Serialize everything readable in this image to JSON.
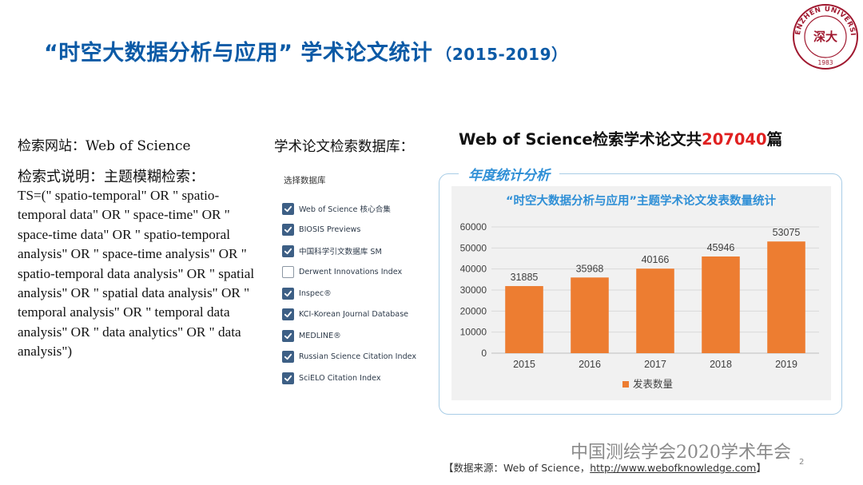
{
  "slide": {
    "title": "“时空大数据分析与应用” 学术论文统计",
    "title_range": "（2015-2019）",
    "page_number": "2"
  },
  "logo": {
    "text_top": "SHENZHEN UNIVERSITY",
    "year": "1983",
    "seal_chars": "深大",
    "color": "#a0182f"
  },
  "left": {
    "site_line": "检索网站：Web of Science",
    "query_label": "检索式说明：主题模糊检索：",
    "query_text": "TS=(\" spatio-temporal\"  OR \" spatio-temporal data\"  OR \" space-time\" OR \" space-time data\"  OR \" spatio-temporal analysis\" OR \" space-time analysis\"   OR \" spatio-temporal data analysis\"  OR \" spatial analysis\"  OR \" spatial data analysis\"  OR \" temporal analysis\"  OR \" temporal data analysis\"  OR \" data analytics\"  OR \" data analysis\")"
  },
  "databases": {
    "heading": "学术论文检索数据库：",
    "box_title": "选择数据库",
    "items": [
      {
        "label": "Web of Science 核心合集",
        "checked": true
      },
      {
        "label": "BIOSIS Previews",
        "checked": true
      },
      {
        "label": "中国科学引文数据库 SM",
        "checked": true
      },
      {
        "label": "Derwent Innovations Index",
        "checked": false
      },
      {
        "label": "Inspec®",
        "checked": true
      },
      {
        "label": "KCI-Korean Journal Database",
        "checked": true
      },
      {
        "label": "MEDLINE®",
        "checked": true
      },
      {
        "label": "Russian Science Citation Index",
        "checked": true
      },
      {
        "label": "SciELO Citation Index",
        "checked": true
      }
    ]
  },
  "summary": {
    "prefix": "Web of Science检索学术论文共",
    "total": "207040",
    "suffix": "篇"
  },
  "chart_tag": "年度统计分析",
  "chart_data": {
    "type": "bar",
    "title": "“时空大数据分析与应用”主题学术论文发表数量统计",
    "categories": [
      "2015",
      "2016",
      "2017",
      "2018",
      "2019"
    ],
    "series": [
      {
        "name": "发表数量",
        "values": [
          31885,
          35968,
          40166,
          45946,
          53075
        ]
      }
    ],
    "ylim": [
      0,
      60000
    ],
    "yticks": [
      "0",
      "10000",
      "20000",
      "30000",
      "40000",
      "50000",
      "60000"
    ],
    "grid": true,
    "legend": "bottom",
    "bar_color": "#ed7d31"
  },
  "footer": {
    "org": "中国测绘学会2020学术年会",
    "source_prefix": "【数据来源：Web of Science，",
    "source_url": "http://www.webofknowledge.com",
    "source_suffix": "】"
  },
  "colors": {
    "title_blue": "#0b5aa6",
    "highlight_red": "#e02020",
    "tag_blue": "#2f8fd6",
    "checkbox_blue": "#3d5f85"
  }
}
